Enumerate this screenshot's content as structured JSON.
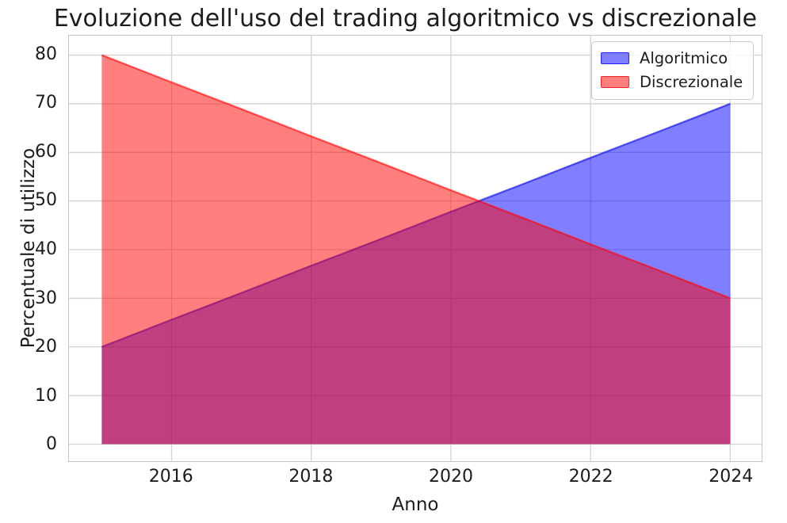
{
  "chart_data": {
    "type": "area",
    "title": "Evoluzione dell'uso del trading algoritmico vs discrezionale",
    "xlabel": "Anno",
    "ylabel": "Percentuale di utilizzo",
    "x": [
      2015,
      2016,
      2017,
      2018,
      2019,
      2020,
      2021,
      2022,
      2023,
      2024
    ],
    "series": [
      {
        "name": "Algoritmico",
        "color": "#0000ff",
        "values": [
          20.0,
          25.6,
          31.1,
          36.7,
          42.2,
          47.8,
          53.3,
          58.9,
          64.4,
          70.0
        ]
      },
      {
        "name": "Discrezionale",
        "color": "#ff0000",
        "values": [
          80.0,
          74.4,
          68.9,
          63.3,
          57.8,
          52.2,
          46.7,
          41.1,
          35.6,
          30.0
        ]
      }
    ],
    "fill_alpha": 0.5,
    "xticks": [
      2016,
      2018,
      2020,
      2022,
      2024
    ],
    "yticks": [
      0,
      10,
      20,
      30,
      40,
      50,
      60,
      70,
      80
    ],
    "xlim": [
      2014.53,
      2024.45
    ],
    "ylim": [
      -3.5,
      84
    ],
    "grid": true,
    "legend_position": "upper right",
    "crossover_point": {
      "x": 2020.4,
      "y": 50
    }
  },
  "colors": {
    "algoritmico_fill": "#8080ff",
    "discrezionale_fill": "#ff8080",
    "overlap": "#bf4080",
    "grid": "#d2d2d2",
    "spine": "#c6c6c6",
    "text": "#1c1c1c",
    "background": "#ffffff"
  }
}
